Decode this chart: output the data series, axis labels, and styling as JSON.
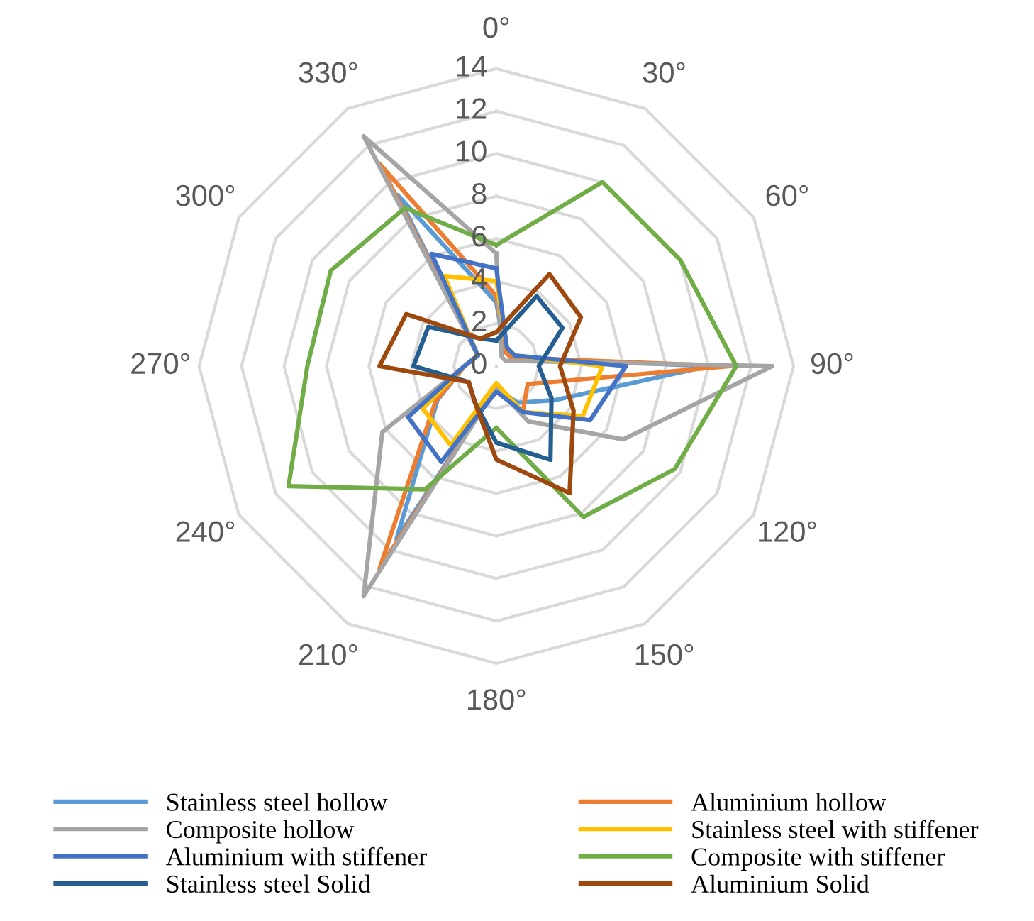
{
  "chart_data": {
    "type": "radar",
    "categories": [
      "0°",
      "30°",
      "60°",
      "90°",
      "120°",
      "150°",
      "180°",
      "210°",
      "240°",
      "270°",
      "300°",
      "330°"
    ],
    "ylim": [
      0,
      14
    ],
    "yticks": [
      0,
      2,
      4,
      6,
      8,
      10,
      12,
      14
    ],
    "grid": true,
    "legend": "bottom",
    "marker": "none",
    "series": [
      {
        "name": "Stainless steel hollow",
        "color": "#5b9bd5",
        "values": [
          3.0,
          0.8,
          0.8,
          10,
          3.2,
          2,
          1,
          9.4,
          3.2,
          1.5,
          1,
          9.3
        ]
      },
      {
        "name": "Aluminium hollow",
        "color": "#ed7d31",
        "values": [
          3.3,
          0.8,
          0.8,
          11,
          1.7,
          2.5,
          1,
          11,
          3.3,
          1.5,
          1,
          11
        ]
      },
      {
        "name": "Composite hollow",
        "color": "#a5a5a5",
        "values": [
          5.3,
          0.5,
          0.5,
          13,
          6.9,
          3,
          1,
          12.5,
          6.2,
          1.5,
          1,
          12.5
        ]
      },
      {
        "name": "Stainless steel with stiffener",
        "color": "#ffc000",
        "values": [
          4,
          1,
          1,
          5,
          4.7,
          2.5,
          0.8,
          4.3,
          4,
          1.5,
          1,
          4.9
        ]
      },
      {
        "name": "Aluminium with stiffener",
        "color": "#4472c4",
        "values": [
          4.6,
          1,
          1,
          6.1,
          5.1,
          2.5,
          1.2,
          5.2,
          4.8,
          1.5,
          1,
          6.1
        ]
      },
      {
        "name": "Composite with stiffener",
        "color": "#70ad47",
        "values": [
          5.7,
          10,
          10,
          11.3,
          9.7,
          8.2,
          2.9,
          6.7,
          11.3,
          8.9,
          9,
          8.6
        ]
      },
      {
        "name": "Stainless steel Solid",
        "color": "#255e91",
        "values": [
          1.2,
          3.8,
          3.6,
          2,
          3,
          5.1,
          3.6,
          2,
          1.5,
          3.9,
          3.7,
          1.5
        ]
      },
      {
        "name": "Aluminium Solid",
        "color": "#9e480e",
        "values": [
          1.6,
          5,
          4.6,
          3,
          4.2,
          6.9,
          4.4,
          2,
          1.5,
          5.5,
          4.9,
          1.5
        ]
      }
    ]
  }
}
